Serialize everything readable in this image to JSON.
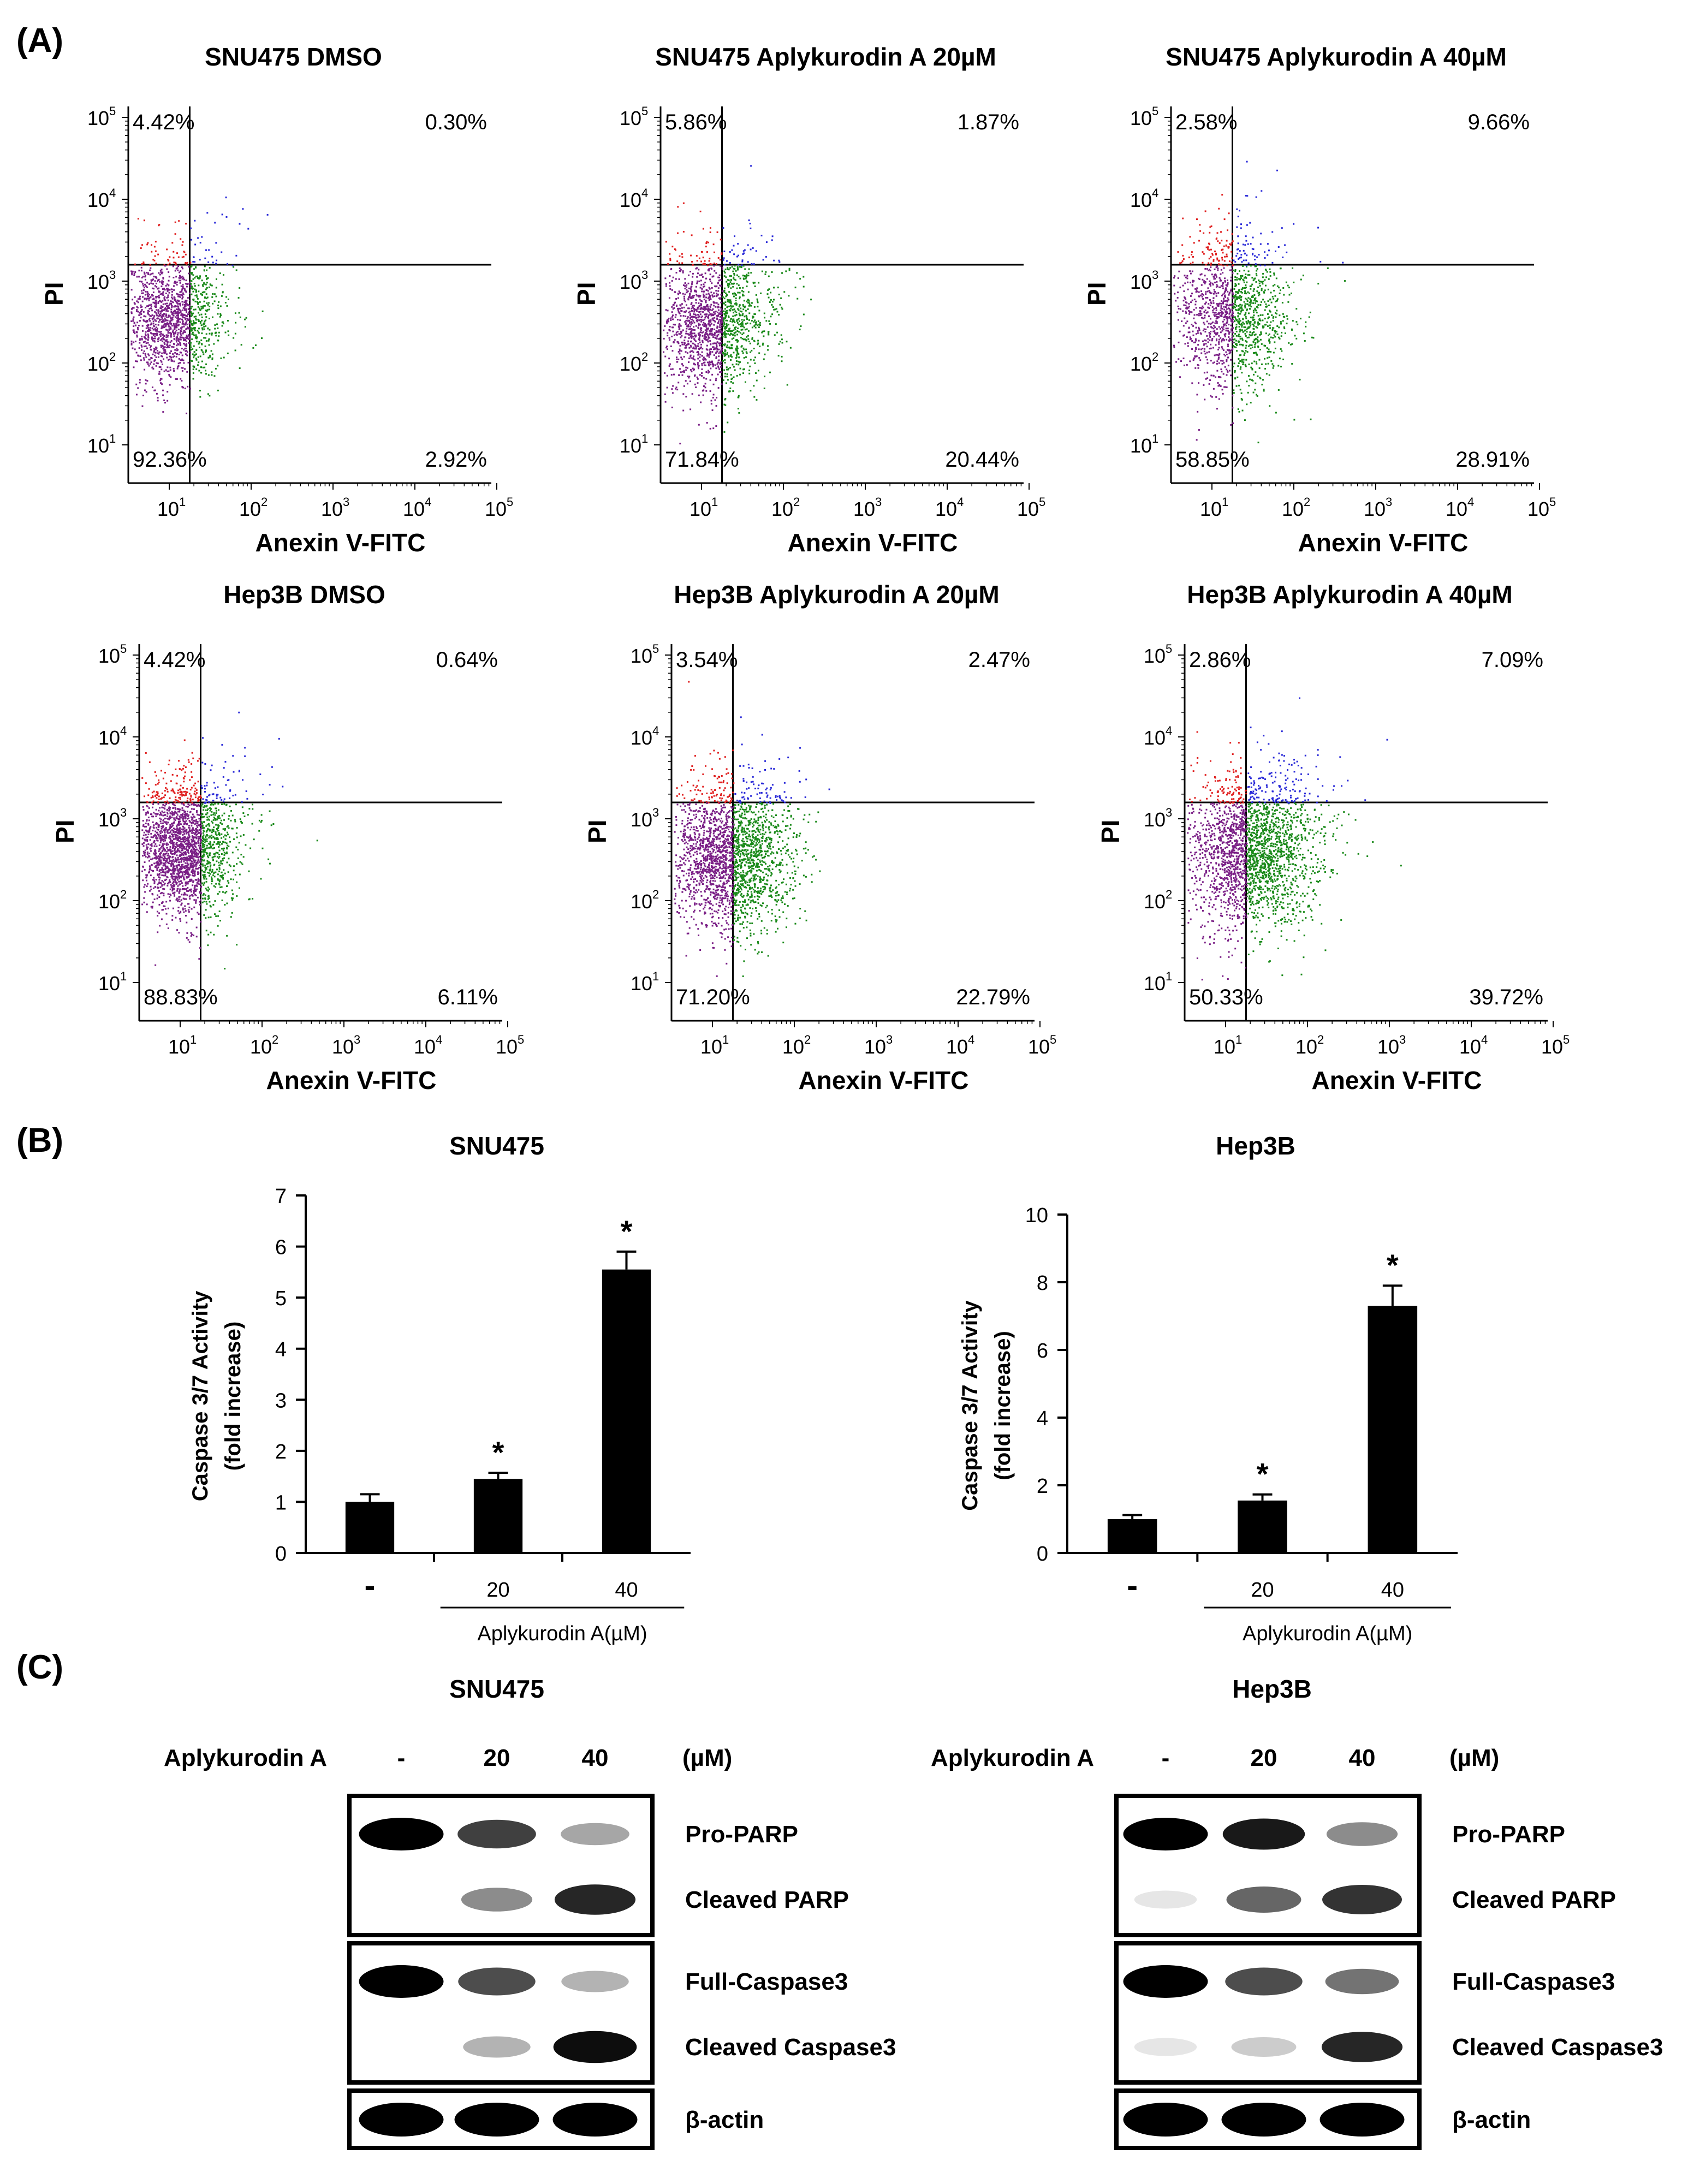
{
  "panel_labels": {
    "a": "(A)",
    "b": "(B)",
    "c": "(C)"
  },
  "colors": {
    "live": "#7a1f86",
    "early_apoptotic": "#1a8a1a",
    "late_apoptotic": "#2a2ad8",
    "necrotic": "#e02020",
    "bar": "#000000"
  },
  "chart_data": [
    {
      "type": "scatter",
      "title": "SNU475 DMSO",
      "xlabel": "Anexin V-FITC",
      "ylabel": "PI",
      "quadrants": {
        "upper_left": "4.42%",
        "upper_right": "0.30%",
        "lower_left": "92.36%",
        "lower_right": "2.92%"
      },
      "x_ticks": [
        "10",
        "10",
        "10",
        "10",
        "10"
      ],
      "x_exp": [
        "1",
        "2",
        "3",
        "4",
        "5"
      ],
      "y_ticks": [
        "10",
        "10",
        "10",
        "10",
        "10"
      ],
      "y_exp": [
        "5",
        "4",
        "3",
        "2",
        "1"
      ],
      "spread": {
        "cx": 1.0,
        "cy": 2.55,
        "sx": 0.3,
        "sy": 0.38,
        "n": 1600,
        "seed": 11
      }
    },
    {
      "type": "scatter",
      "title": "SNU475 Aplykurodin A 20µM",
      "xlabel": "Anexin V-FITC",
      "ylabel": "PI",
      "quadrants": {
        "upper_left": "5.86%",
        "upper_right": "1.87%",
        "lower_left": "71.84%",
        "lower_right": "20.44%"
      },
      "x_ticks": [
        "10",
        "10",
        "10",
        "10",
        "10"
      ],
      "x_exp": [
        "1",
        "2",
        "3",
        "4",
        "5"
      ],
      "y_ticks": [
        "10",
        "10",
        "10",
        "10",
        "10"
      ],
      "y_exp": [
        "5",
        "4",
        "3",
        "2",
        "1"
      ],
      "spread": {
        "cx": 1.12,
        "cy": 2.5,
        "sx": 0.33,
        "sy": 0.42,
        "n": 1700,
        "seed": 23
      }
    },
    {
      "type": "scatter",
      "title": "SNU475 Aplykurodin A 40µM",
      "xlabel": "Anexin V-FITC",
      "ylabel": "PI",
      "quadrants": {
        "upper_left": "2.58%",
        "upper_right": "9.66%",
        "lower_left": "58.85%",
        "lower_right": "28.91%"
      },
      "x_ticks": [
        "10",
        "10",
        "10",
        "10",
        "10"
      ],
      "x_exp": [
        "1",
        "2",
        "3",
        "4",
        "5"
      ],
      "y_ticks": [
        "10",
        "10",
        "10",
        "10",
        "10"
      ],
      "y_exp": [
        "5",
        "4",
        "3",
        "2",
        "1"
      ],
      "spread": {
        "cx": 1.22,
        "cy": 2.6,
        "sx": 0.35,
        "sy": 0.48,
        "n": 1500,
        "seed": 37
      }
    },
    {
      "type": "scatter",
      "title": "Hep3B DMSO",
      "xlabel": "Anexin V-FITC",
      "ylabel": "PI",
      "quadrants": {
        "upper_left": "4.42%",
        "upper_right": "0.64%",
        "lower_left": "88.83%",
        "lower_right": "6.11%"
      },
      "x_ticks": [
        "10",
        "10",
        "10",
        "10",
        "10"
      ],
      "x_exp": [
        "1",
        "2",
        "3",
        "4",
        "5"
      ],
      "y_ticks": [
        "10",
        "10",
        "10",
        "10",
        "10"
      ],
      "y_exp": [
        "5",
        "4",
        "3",
        "2",
        "1"
      ],
      "spread": {
        "cx": 1.02,
        "cy": 2.65,
        "sx": 0.3,
        "sy": 0.4,
        "n": 2400,
        "seed": 41
      }
    },
    {
      "type": "scatter",
      "title": "Hep3B Aplykurodin A 20µM",
      "xlabel": "Anexin V-FITC",
      "ylabel": "PI",
      "quadrants": {
        "upper_left": "3.54%",
        "upper_right": "2.47%",
        "lower_left": "71.20%",
        "lower_right": "22.79%"
      },
      "x_ticks": [
        "10",
        "10",
        "10",
        "10",
        "10"
      ],
      "x_exp": [
        "1",
        "2",
        "3",
        "4",
        "5"
      ],
      "y_ticks": [
        "10",
        "10",
        "10",
        "10",
        "10"
      ],
      "y_exp": [
        "5",
        "4",
        "3",
        "2",
        "1"
      ],
      "spread": {
        "cx": 1.18,
        "cy": 2.55,
        "sx": 0.38,
        "sy": 0.45,
        "n": 2400,
        "seed": 53
      }
    },
    {
      "type": "scatter",
      "title": "Hep3B Aplykurodin A 40µM",
      "xlabel": "Anexin V-FITC",
      "ylabel": "PI",
      "quadrants": {
        "upper_left": "2.86%",
        "upper_right": "7.09%",
        "lower_left": "50.33%",
        "lower_right": "39.72%"
      },
      "x_ticks": [
        "10",
        "10",
        "10",
        "10",
        "10"
      ],
      "x_exp": [
        "1",
        "2",
        "3",
        "4",
        "5"
      ],
      "y_ticks": [
        "10",
        "10",
        "10",
        "10",
        "10"
      ],
      "y_exp": [
        "5",
        "4",
        "3",
        "2",
        "1"
      ],
      "spread": {
        "cx": 1.3,
        "cy": 2.6,
        "sx": 0.38,
        "sy": 0.47,
        "n": 2400,
        "seed": 67
      }
    },
    {
      "type": "bar",
      "title": "SNU475",
      "ylabel": "Caspase 3/7 Activity",
      "ylabel2": "(fold increase)",
      "categories": [
        "-",
        "20",
        "40"
      ],
      "values": [
        1.0,
        1.45,
        5.55
      ],
      "errors": [
        0.15,
        0.12,
        0.35
      ],
      "significant": [
        "",
        "*",
        "*"
      ],
      "ylim": [
        0,
        7
      ],
      "yticks": [
        "0",
        "1",
        "2",
        "3",
        "4",
        "5",
        "6",
        "7"
      ],
      "xlabel": "Aplykurodin A(µM)"
    },
    {
      "type": "bar",
      "title": "Hep3B",
      "ylabel": "Caspase 3/7 Activity",
      "ylabel2": "(fold increase)",
      "categories": [
        "-",
        "20",
        "40"
      ],
      "values": [
        1.0,
        1.55,
        7.3
      ],
      "errors": [
        0.12,
        0.18,
        0.6
      ],
      "significant": [
        "",
        "*",
        "*"
      ],
      "ylim": [
        0,
        10
      ],
      "yticks": [
        "0",
        "2",
        "4",
        "6",
        "8",
        "10"
      ],
      "xlabel": "Aplykurodin A(µM)"
    }
  ],
  "western_blots": [
    {
      "title": "SNU475",
      "treatment_label": "Aplykurodin A",
      "doses": [
        "-",
        "20",
        "40"
      ],
      "unit": "(µM)",
      "bands": [
        "Pro-PARP",
        "Cleaved PARP",
        "Full-Caspase3",
        "Cleaved Caspase3",
        "β-actin"
      ],
      "intensity": [
        [
          1.0,
          0.75,
          0.35
        ],
        [
          0.0,
          0.45,
          0.85
        ],
        [
          1.0,
          0.7,
          0.3
        ],
        [
          0.0,
          0.3,
          0.95
        ],
        [
          1.0,
          1.0,
          1.0
        ]
      ]
    },
    {
      "title": "Hep3B",
      "treatment_label": "Aplykurodin A",
      "doses": [
        "-",
        "20",
        "40"
      ],
      "unit": "(µM)",
      "bands": [
        "Pro-PARP",
        "Cleaved PARP",
        "Full-Caspase3",
        "Cleaved Caspase3",
        "β-actin"
      ],
      "intensity": [
        [
          1.0,
          0.9,
          0.45
        ],
        [
          0.1,
          0.6,
          0.8
        ],
        [
          1.0,
          0.7,
          0.55
        ],
        [
          0.1,
          0.2,
          0.85
        ],
        [
          1.0,
          1.0,
          1.0
        ]
      ]
    }
  ]
}
